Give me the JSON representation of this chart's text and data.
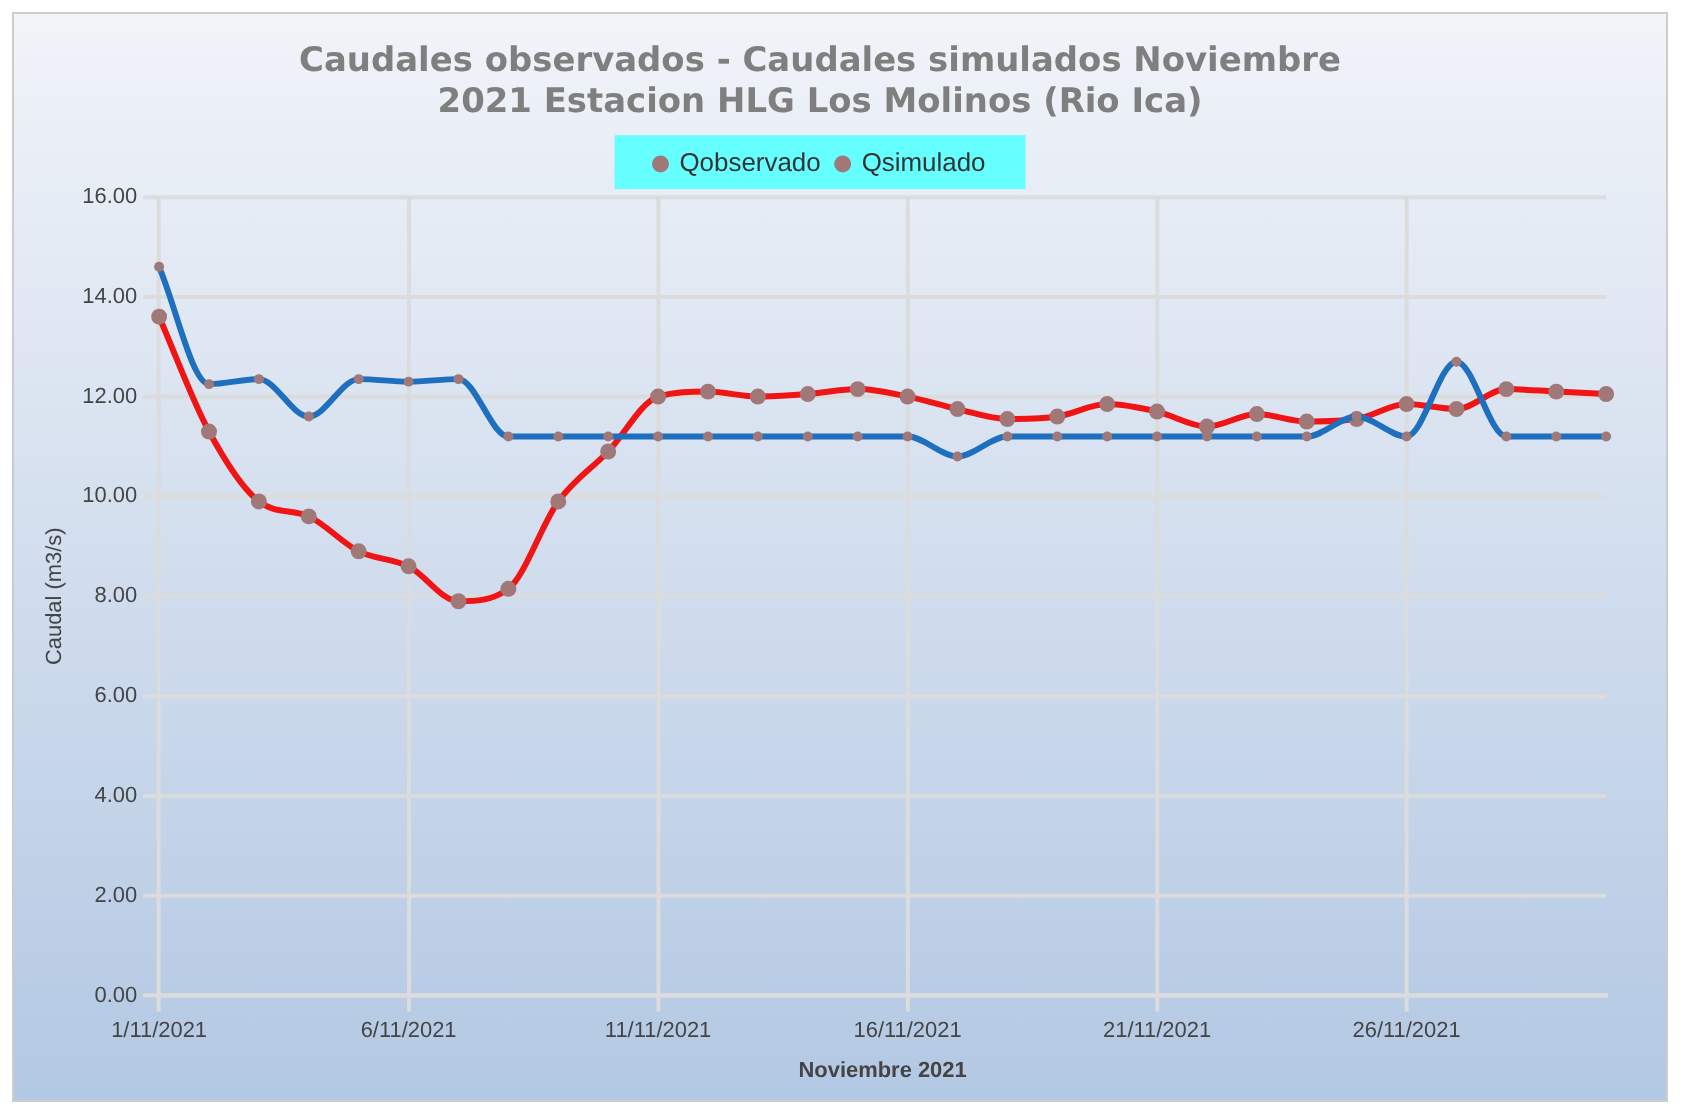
{
  "chart_data": {
    "type": "line",
    "title": [
      "Caudales observados - Caudales simulados Noviembre",
      "2021 Estacion HLG Los Molinos (Rio Ica)"
    ],
    "xlabel": "Noviembre 2021",
    "ylabel": "Caudal (m3/s)",
    "categories": [
      "1/11/2021",
      null,
      null,
      null,
      null,
      "6/11/2021",
      null,
      null,
      null,
      null,
      "11/11/2021",
      null,
      null,
      null,
      null,
      "16/11/2021",
      null,
      null,
      null,
      null,
      "21/11/2021",
      null,
      null,
      null,
      null,
      "26/11/2021",
      null,
      null,
      null,
      null
    ],
    "series": [
      {
        "name": "Qobservado",
        "color": "#1f6fbf",
        "values": [
          14.6,
          12.25,
          12.35,
          11.6,
          12.35,
          12.3,
          12.35,
          11.2,
          11.2,
          11.2,
          11.2,
          11.2,
          11.2,
          11.2,
          11.2,
          11.2,
          10.8,
          11.2,
          11.2,
          11.2,
          11.2,
          11.2,
          11.2,
          11.2,
          11.6,
          11.2,
          12.7,
          11.2,
          11.2,
          11.2
        ]
      },
      {
        "name": "Qsimulado",
        "color": "#f01414",
        "values": [
          13.6,
          11.3,
          9.9,
          9.6,
          8.9,
          8.6,
          7.9,
          8.15,
          9.9,
          10.9,
          12.0,
          12.1,
          12.0,
          12.05,
          12.15,
          12.0,
          11.75,
          11.55,
          11.6,
          11.85,
          11.7,
          11.4,
          11.65,
          11.5,
          11.55,
          11.85,
          11.75,
          12.15,
          12.1,
          12.05
        ]
      }
    ],
    "ylim": [
      0,
      16
    ],
    "yticks": [
      {
        "value": 0,
        "label": "0.00"
      },
      {
        "value": 2,
        "label": "2.00"
      },
      {
        "value": 4,
        "label": "4.00"
      },
      {
        "value": 6,
        "label": "6.00"
      },
      {
        "value": 8,
        "label": "8.00"
      },
      {
        "value": 10,
        "label": "10.00"
      },
      {
        "value": 12,
        "label": "12.00"
      },
      {
        "value": 14,
        "label": "14.00"
      },
      {
        "value": 16,
        "label": "16.00"
      }
    ],
    "grid": true,
    "legend": "top",
    "marker": "circle",
    "line_style": "solid"
  }
}
